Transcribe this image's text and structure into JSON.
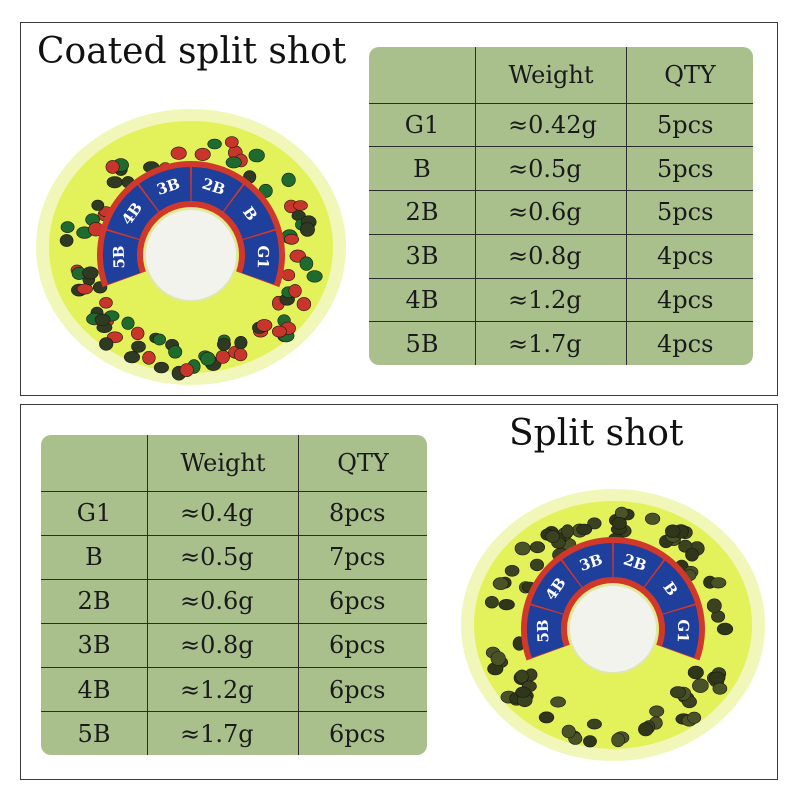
{
  "coated": {
    "title": "Coated split shot",
    "headers": [
      "",
      "Weight",
      "QTY"
    ],
    "rows": [
      [
        "G1",
        "≈0.42g",
        "5pcs"
      ],
      [
        "B",
        "≈0.5g",
        "5pcs"
      ],
      [
        "2B",
        "≈0.6g",
        "5pcs"
      ],
      [
        "3B",
        "≈0.8g",
        "4pcs"
      ],
      [
        "4B",
        "≈1.2g",
        "4pcs"
      ],
      [
        "5B",
        "≈1.7g",
        "4pcs"
      ]
    ],
    "dial_labels": [
      "3B",
      "2B",
      "B",
      "G1",
      "5B",
      "4B"
    ]
  },
  "plain": {
    "title": "Split shot",
    "headers": [
      "",
      "Weight",
      "QTY"
    ],
    "rows": [
      [
        "G1",
        "≈0.4g",
        "8pcs"
      ],
      [
        "B",
        "≈0.5g",
        "7pcs"
      ],
      [
        "2B",
        "≈0.6g",
        "6pcs"
      ],
      [
        "3B",
        "≈0.8g",
        "6pcs"
      ],
      [
        "4B",
        "≈1.2g",
        "6pcs"
      ],
      [
        "5B",
        "≈1.7g",
        "6pcs"
      ]
    ],
    "dial_labels": [
      "3B",
      "2B",
      "B",
      "G1",
      "5B",
      "4B"
    ]
  },
  "colors": {
    "table_bg": "#a9c08d",
    "case_yellow": "#e8f56a",
    "label_blue": "#1f3f9c",
    "label_red": "#d0382c",
    "shot_coated": [
      "#1f6b2e",
      "#c8352a",
      "#2e3a22"
    ],
    "shot_plain": "#3a4220"
  }
}
